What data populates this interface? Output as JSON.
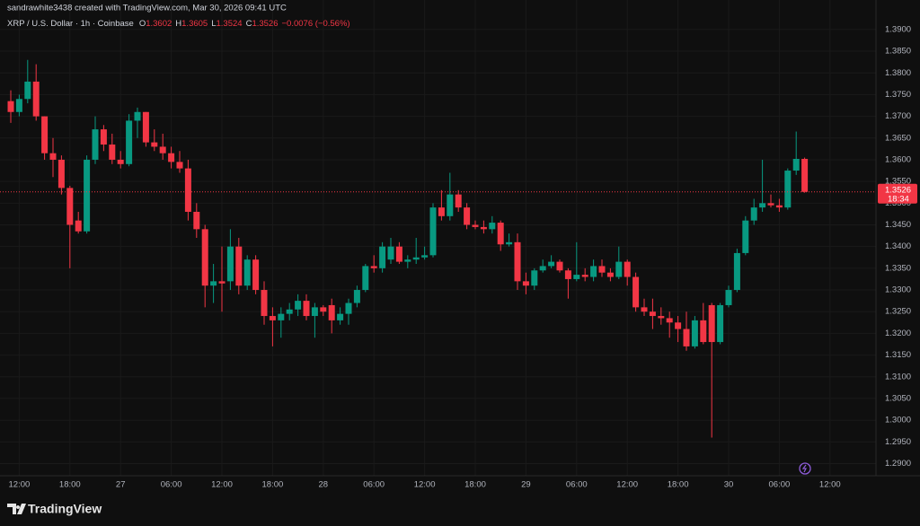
{
  "chart_data": {
    "type": "candlestick",
    "attribution": "sandrawhite3438 created with TradingView.com, Mar 30, 2026 09:41 UTC",
    "title": "XRP / U.S. Dollar · 1h · Coinbase",
    "legend_keys": [
      "O",
      "H",
      "L",
      "C"
    ],
    "change": "−0.0076 (−0.56%)",
    "countdown": "18:34",
    "brand": "TradingView",
    "up_color": "#089981",
    "down_color": "#f23645",
    "grid": true,
    "categories": [
      null,
      "12:00",
      null,
      null,
      null,
      null,
      null,
      "18:00",
      null,
      null,
      null,
      null,
      null,
      "27",
      null,
      null,
      null,
      null,
      null,
      "06:00",
      null,
      null,
      null,
      null,
      null,
      "12:00",
      null,
      null,
      null,
      null,
      null,
      "18:00",
      null,
      null,
      null,
      null,
      null,
      "28",
      null,
      null,
      null,
      null,
      null,
      "06:00",
      null,
      null,
      null,
      null,
      null,
      "12:00",
      null,
      null,
      null,
      null,
      null,
      "18:00",
      null,
      null,
      null,
      null,
      null,
      "29",
      null,
      null,
      null,
      null,
      null,
      "06:00",
      null,
      null,
      null,
      null,
      null,
      "12:00",
      null,
      null,
      null,
      null,
      null,
      "18:00",
      null,
      null,
      null,
      null,
      null,
      "30",
      null,
      null,
      null,
      null,
      null,
      "06:00",
      null,
      null,
      null,
      null,
      null,
      "12:00"
    ],
    "open": [
      1.3735,
      1.371,
      1.374,
      1.378,
      1.37,
      1.3615,
      1.36,
      1.3535,
      1.346,
      1.3435,
      1.36,
      1.367,
      1.3635,
      1.36,
      1.359,
      1.369,
      1.371,
      1.364,
      1.363,
      1.3615,
      1.3595,
      1.358,
      1.348,
      1.344,
      1.331,
      1.332,
      1.332,
      1.34,
      1.331,
      1.337,
      1.33,
      1.324,
      1.323,
      1.3245,
      1.3255,
      1.3275,
      1.324,
      1.326,
      1.3265,
      1.323,
      1.3245,
      1.327,
      1.33,
      1.3355,
      1.335,
      1.337,
      1.34,
      1.3365,
      1.337,
      1.3375,
      1.338,
      1.349,
      1.347,
      1.352,
      1.349,
      1.345,
      1.3445,
      1.344,
      1.3455,
      1.3405,
      1.341,
      1.332,
      1.331,
      1.3345,
      1.3355,
      1.3365,
      1.3345,
      1.3325,
      1.3335,
      1.333,
      1.3355,
      1.334,
      1.333,
      1.3365,
      1.333,
      1.326,
      1.325,
      1.324,
      1.3235,
      1.3225,
      1.321,
      1.317,
      1.323,
      1.3265,
      1.318,
      1.3265,
      1.33,
      1.3385,
      1.346,
      1.349,
      1.35,
      1.3495,
      1.349,
      1.3575,
      1.3602,
      null,
      null,
      null
    ],
    "high": [
      1.376,
      1.375,
      1.383,
      1.382,
      1.37,
      1.365,
      1.361,
      1.354,
      1.348,
      1.361,
      1.37,
      1.368,
      1.366,
      1.362,
      1.3705,
      1.372,
      1.371,
      1.367,
      1.366,
      1.363,
      1.362,
      1.36,
      1.35,
      1.345,
      1.336,
      1.34,
      1.344,
      1.342,
      1.338,
      1.338,
      1.332,
      1.326,
      1.326,
      1.327,
      1.329,
      1.329,
      1.327,
      1.3265,
      1.328,
      1.326,
      1.328,
      1.331,
      1.336,
      1.338,
      1.341,
      1.342,
      1.341,
      1.338,
      1.342,
      1.34,
      1.35,
      1.353,
      1.357,
      1.353,
      1.35,
      1.346,
      1.346,
      1.347,
      1.346,
      1.343,
      1.343,
      1.334,
      1.335,
      1.337,
      1.338,
      1.337,
      1.335,
      1.341,
      1.335,
      1.337,
      1.337,
      1.335,
      1.34,
      1.337,
      1.334,
      1.328,
      1.328,
      1.326,
      1.325,
      1.324,
      1.325,
      1.324,
      1.327,
      1.327,
      1.327,
      1.331,
      1.3395,
      1.347,
      1.351,
      1.36,
      1.352,
      1.351,
      1.358,
      1.3665,
      1.3605,
      null,
      null,
      null
    ],
    "low": [
      1.3685,
      1.37,
      1.373,
      1.369,
      1.36,
      1.356,
      1.352,
      1.335,
      1.343,
      1.343,
      1.359,
      1.362,
      1.359,
      1.358,
      1.3585,
      1.365,
      1.363,
      1.362,
      1.36,
      1.358,
      1.357,
      1.346,
      1.342,
      1.326,
      1.327,
      1.325,
      1.33,
      1.329,
      1.33,
      1.329,
      1.322,
      1.317,
      1.319,
      1.323,
      1.324,
      1.323,
      1.319,
      1.324,
      1.32,
      1.322,
      1.322,
      1.326,
      1.3295,
      1.334,
      1.334,
      1.336,
      1.336,
      1.335,
      1.336,
      1.337,
      1.3375,
      1.346,
      1.346,
      1.348,
      1.344,
      1.344,
      1.343,
      1.343,
      1.339,
      1.34,
      1.33,
      1.329,
      1.33,
      1.334,
      1.335,
      1.334,
      1.328,
      1.332,
      1.332,
      1.332,
      1.333,
      1.332,
      1.3325,
      1.331,
      1.325,
      1.324,
      1.321,
      1.322,
      1.319,
      1.318,
      1.316,
      1.3165,
      1.3175,
      1.296,
      1.3175,
      1.326,
      1.3295,
      1.338,
      1.345,
      1.348,
      1.349,
      1.348,
      1.3485,
      1.3565,
      1.3524,
      null,
      null,
      null
    ],
    "close": [
      1.371,
      1.374,
      1.378,
      1.37,
      1.3615,
      1.36,
      1.3535,
      1.345,
      1.3435,
      1.36,
      1.367,
      1.3635,
      1.36,
      1.359,
      1.369,
      1.371,
      1.364,
      1.363,
      1.3615,
      1.3595,
      1.358,
      1.348,
      1.344,
      1.331,
      1.332,
      1.3315,
      1.34,
      1.331,
      1.337,
      1.33,
      1.324,
      1.323,
      1.3245,
      1.3255,
      1.3275,
      1.324,
      1.326,
      1.325,
      1.323,
      1.3245,
      1.327,
      1.33,
      1.3355,
      1.335,
      1.34,
      1.34,
      1.3365,
      1.337,
      1.3375,
      1.338,
      1.349,
      1.347,
      1.352,
      1.349,
      1.345,
      1.3445,
      1.344,
      1.3455,
      1.3405,
      1.341,
      1.332,
      1.331,
      1.3345,
      1.3355,
      1.3365,
      1.3345,
      1.3325,
      1.3335,
      1.333,
      1.3355,
      1.334,
      1.333,
      1.3365,
      1.333,
      1.326,
      1.325,
      1.324,
      1.3235,
      1.3225,
      1.321,
      1.317,
      1.323,
      1.318,
      1.318,
      1.3265,
      1.33,
      1.3385,
      1.346,
      1.349,
      1.35,
      1.3495,
      1.349,
      1.3575,
      1.3602,
      1.3526,
      null,
      null,
      null
    ],
    "ylim": [
      1.2872,
      1.3968
    ],
    "yticks": [
      {
        "value": 1.29,
        "label": "1.2900"
      },
      {
        "value": 1.295,
        "label": "1.2950"
      },
      {
        "value": 1.3,
        "label": "1.3000"
      },
      {
        "value": 1.305,
        "label": "1.3050"
      },
      {
        "value": 1.31,
        "label": "1.3100"
      },
      {
        "value": 1.315,
        "label": "1.3150"
      },
      {
        "value": 1.32,
        "label": "1.3200"
      },
      {
        "value": 1.325,
        "label": "1.3250"
      },
      {
        "value": 1.33,
        "label": "1.3300"
      },
      {
        "value": 1.335,
        "label": "1.3350"
      },
      {
        "value": 1.34,
        "label": "1.3400"
      },
      {
        "value": 1.345,
        "label": "1.3450"
      },
      {
        "value": 1.35,
        "label": "1.3500"
      },
      {
        "value": 1.355,
        "label": "1.3550"
      },
      {
        "value": 1.36,
        "label": "1.3600"
      },
      {
        "value": 1.365,
        "label": "1.3650"
      },
      {
        "value": 1.37,
        "label": "1.3700"
      },
      {
        "value": 1.375,
        "label": "1.3750"
      },
      {
        "value": 1.38,
        "label": "1.3800"
      },
      {
        "value": 1.385,
        "label": "1.3850"
      },
      {
        "value": 1.39,
        "label": "1.3900"
      }
    ]
  }
}
